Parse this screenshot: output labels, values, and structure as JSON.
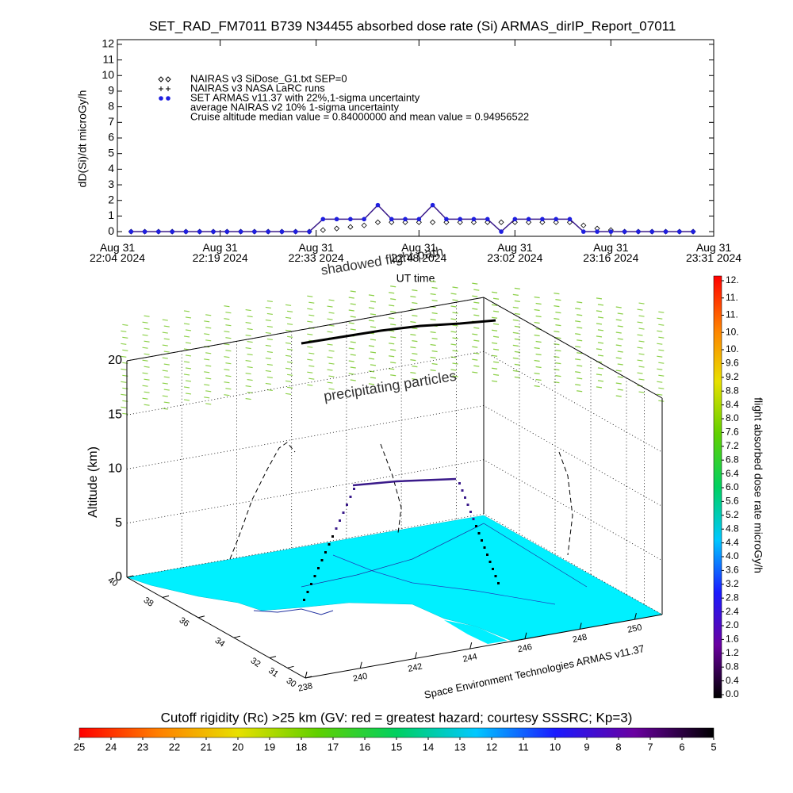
{
  "chart_data": [
    {
      "type": "line",
      "title": "SET_RAD_FM7011  B739 N34455 absorbed dose rate (Si) ARMAS_dirIP_Report_07011",
      "y_label": "dD(Si)/dt microGy/h",
      "x_label": "UT time",
      "x": [
        "2024-08-31 22:06",
        "2024-08-31 22:08",
        "2024-08-31 22:10",
        "2024-08-31 22:12",
        "2024-08-31 22:14",
        "2024-08-31 22:16",
        "2024-08-31 22:18",
        "2024-08-31 22:20",
        "2024-08-31 22:22",
        "2024-08-31 22:24",
        "2024-08-31 22:26",
        "2024-08-31 22:28",
        "2024-08-31 22:30",
        "2024-08-31 22:32",
        "2024-08-31 22:34",
        "2024-08-31 22:36",
        "2024-08-31 22:38",
        "2024-08-31 22:40",
        "2024-08-31 22:42",
        "2024-08-31 22:44",
        "2024-08-31 22:46",
        "2024-08-31 22:48",
        "2024-08-31 22:50",
        "2024-08-31 22:52",
        "2024-08-31 22:54",
        "2024-08-31 22:56",
        "2024-08-31 22:58",
        "2024-08-31 23:00",
        "2024-08-31 23:02",
        "2024-08-31 23:04",
        "2024-08-31 23:06",
        "2024-08-31 23:08",
        "2024-08-31 23:10",
        "2024-08-31 23:12",
        "2024-08-31 23:14",
        "2024-08-31 23:16",
        "2024-08-31 23:18",
        "2024-08-31 23:20",
        "2024-08-31 23:22",
        "2024-08-31 23:24",
        "2024-08-31 23:26",
        "2024-08-31 23:28"
      ],
      "series": [
        {
          "name": "NAIRAS v3 SiDose_G1.txt SEP=0",
          "color": "#000000",
          "marker": "diamond",
          "values": [
            0,
            0,
            0,
            0,
            0,
            0,
            0,
            0,
            0,
            0,
            0,
            0,
            0,
            0,
            0.1,
            0.2,
            0.3,
            0.4,
            0.6,
            0.6,
            0.6,
            0.6,
            0.6,
            0.6,
            0.6,
            0.6,
            0.6,
            0.6,
            0.6,
            0.6,
            0.6,
            0.6,
            0.6,
            0.4,
            0.2,
            0.1,
            0,
            0,
            0,
            0,
            0,
            0
          ]
        },
        {
          "name": "SET ARMAS v11.37 with 22%,1-sigma uncertainty",
          "color": "#1f1fe0",
          "line_color": "#3a1a8a",
          "marker": "circle",
          "values": [
            0,
            0,
            0,
            0,
            0,
            0,
            0,
            0,
            0,
            0,
            0,
            0,
            0,
            0,
            0.8,
            0.8,
            0.8,
            0.8,
            1.7,
            0.8,
            0.8,
            0.8,
            1.7,
            0.8,
            0.8,
            0.8,
            0.8,
            0,
            0.8,
            0.8,
            0.8,
            0.8,
            0.8,
            0,
            0,
            0,
            0,
            0,
            0,
            0,
            0,
            0
          ]
        }
      ],
      "annotations": [
        "NAIRAS v3 NASA LaRC runs",
        "average NAIRAS v2 10% 1-sigma uncertainty",
        "Cruise altitude median value = 0.84000000 and mean value = 0.94956522"
      ],
      "xlim": [
        "2024-08-31 22:04",
        "2024-08-31 23:31"
      ],
      "xticks": [
        {
          "value": "2024-08-31 22:04",
          "label": "Aug 31\n22:04 2024"
        },
        {
          "value": "2024-08-31 22:19",
          "label": "Aug 31\n22:19 2024"
        },
        {
          "value": "2024-08-31 22:33",
          "label": "Aug 31\n22:33 2024"
        },
        {
          "value": "2024-08-31 22:48",
          "label": "Aug 31\n22:48 2024"
        },
        {
          "value": "2024-08-31 23:02",
          "label": "Aug 31\n23:02 2024"
        },
        {
          "value": "2024-08-31 23:16",
          "label": "Aug 31\n23:16 2024"
        },
        {
          "value": "2024-08-31 23:31",
          "label": "Aug 31\n23:31 2024"
        }
      ],
      "ylim": [
        -0.3,
        12.3
      ],
      "yticks": [
        0,
        1,
        2,
        3,
        4,
        5,
        6,
        7,
        8,
        9,
        10,
        11,
        12
      ]
    },
    {
      "type": "surface3d",
      "z_label": "Altitude (km)",
      "annotations": [
        "precipitating particles",
        "shadowed flight path",
        "Space Environment Technologies ARMAS v11.37"
      ],
      "xlim": [
        238,
        251
      ],
      "xticks": [
        238,
        240,
        242,
        244,
        246,
        248,
        250
      ],
      "ylim": [
        30,
        40
      ],
      "yticks": [
        30,
        31,
        32,
        34,
        36,
        38,
        40
      ],
      "zlim": [
        0,
        20
      ],
      "zticks": [
        0,
        5,
        10,
        15,
        20
      ]
    },
    {
      "type": "colorbar",
      "orientation": "vertical",
      "label": "flight absorbed dose rate microGy/h",
      "colors": [
        "#000000",
        "#6a00a0",
        "#1a1aff",
        "#00c8ff",
        "#00d060",
        "#60d000",
        "#e8e000",
        "#ff8000",
        "#ff0000"
      ],
      "ylim": [
        0,
        12
      ],
      "yticks": [
        {
          "value": 0,
          "label": "0.0"
        },
        0.4,
        0.8,
        1.2,
        1.6,
        {
          "value": 2,
          "label": "2.0"
        },
        2.4,
        2.8,
        3.2,
        3.6,
        {
          "value": 4,
          "label": "4.0"
        },
        4.4,
        4.8,
        5.2,
        5.6,
        {
          "value": 6,
          "label": "6.0"
        },
        6.4,
        6.8,
        7.2,
        7.6,
        {
          "value": 8,
          "label": "8.0"
        },
        8.4,
        8.8,
        9.2,
        9.6,
        {
          "value": 10,
          "label": "10."
        },
        {
          "value": 10.5,
          "label": "10."
        },
        {
          "value": 11,
          "label": "11."
        },
        {
          "value": 11.5,
          "label": "11."
        },
        {
          "value": 12,
          "label": "12."
        }
      ]
    },
    {
      "type": "colorbar",
      "orientation": "horizontal",
      "title": "Cutoff rigidity (Rc) >25 km (GV: red = greatest hazard; courtesy SSSRC; Kp=3)",
      "colors": [
        "#000000",
        "#6a00a0",
        "#1a1aff",
        "#00c8ff",
        "#00d060",
        "#60d000",
        "#e8e000",
        "#ff8000",
        "#ff0000"
      ],
      "xlim": [
        25,
        5
      ],
      "xticks": [
        25,
        24,
        23,
        22,
        21,
        20,
        19,
        18,
        17,
        16,
        15,
        14,
        13,
        12,
        11,
        10,
        9,
        8,
        7,
        6,
        5
      ]
    }
  ]
}
